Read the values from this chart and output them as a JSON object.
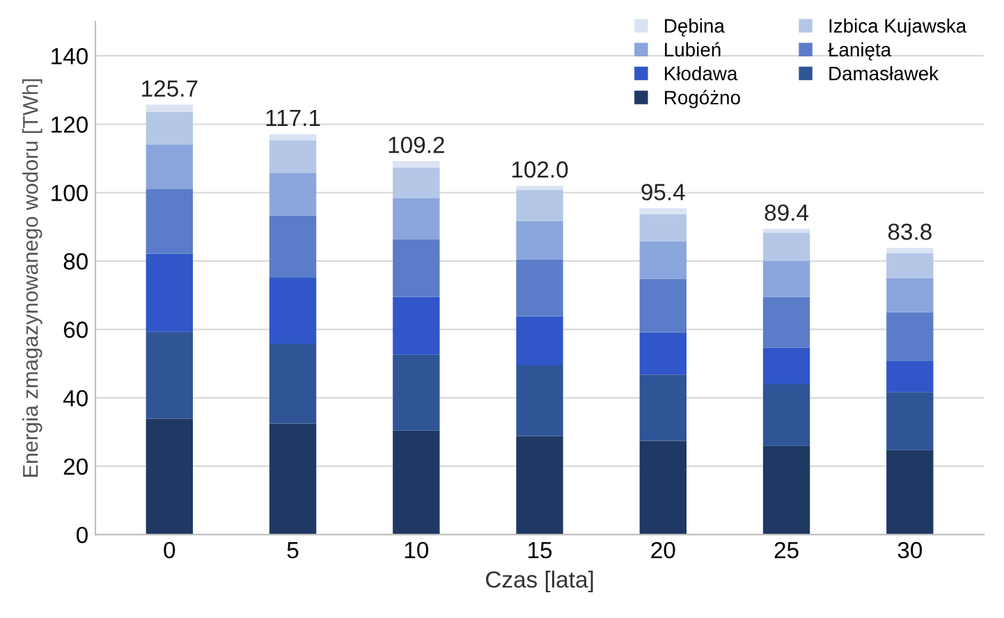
{
  "chart_data": {
    "type": "bar",
    "stacked": true,
    "xlabel": "Czas [lata]",
    "ylabel": "Energia zmagazynowanego wodoru [TWh]",
    "categories": [
      "0",
      "5",
      "10",
      "15",
      "20",
      "25",
      "30"
    ],
    "series": [
      {
        "name": "Rogóżno",
        "color": "#203864",
        "values": [
          33.9,
          32.5,
          30.4,
          28.8,
          27.4,
          26.0,
          24.7
        ]
      },
      {
        "name": "Damasławek",
        "color": "#2f5597",
        "values": [
          25.4,
          23.3,
          22.2,
          20.7,
          19.4,
          18.0,
          17.0
        ]
      },
      {
        "name": "Kłodawa",
        "color": "#3056c9",
        "values": [
          22.8,
          19.5,
          16.9,
          14.3,
          12.3,
          10.6,
          9.0
        ]
      },
      {
        "name": "Łanięta",
        "color": "#5b7cc8",
        "values": [
          19.0,
          18.0,
          16.9,
          16.7,
          15.7,
          14.9,
          14.3
        ]
      },
      {
        "name": "Lubień",
        "color": "#8aa6dc",
        "values": [
          12.9,
          12.5,
          11.9,
          11.2,
          10.9,
          10.5,
          9.9
        ]
      },
      {
        "name": "Izbica Kujawska",
        "color": "#b4c7e7",
        "values": [
          9.6,
          9.4,
          9.1,
          9.1,
          8.0,
          8.3,
          7.4
        ]
      },
      {
        "name": "Dębina",
        "color": "#dae3f3",
        "values": [
          2.1,
          1.9,
          1.8,
          1.2,
          1.7,
          1.1,
          1.5
        ]
      }
    ],
    "totals": [
      "125.7",
      "117.1",
      "109.2",
      "102.0",
      "95.4",
      "89.4",
      "83.8"
    ],
    "ylim": [
      0,
      150
    ],
    "yticks": [
      0,
      20,
      40,
      60,
      80,
      100,
      120,
      140
    ],
    "grid": "y",
    "legend": "top right"
  }
}
